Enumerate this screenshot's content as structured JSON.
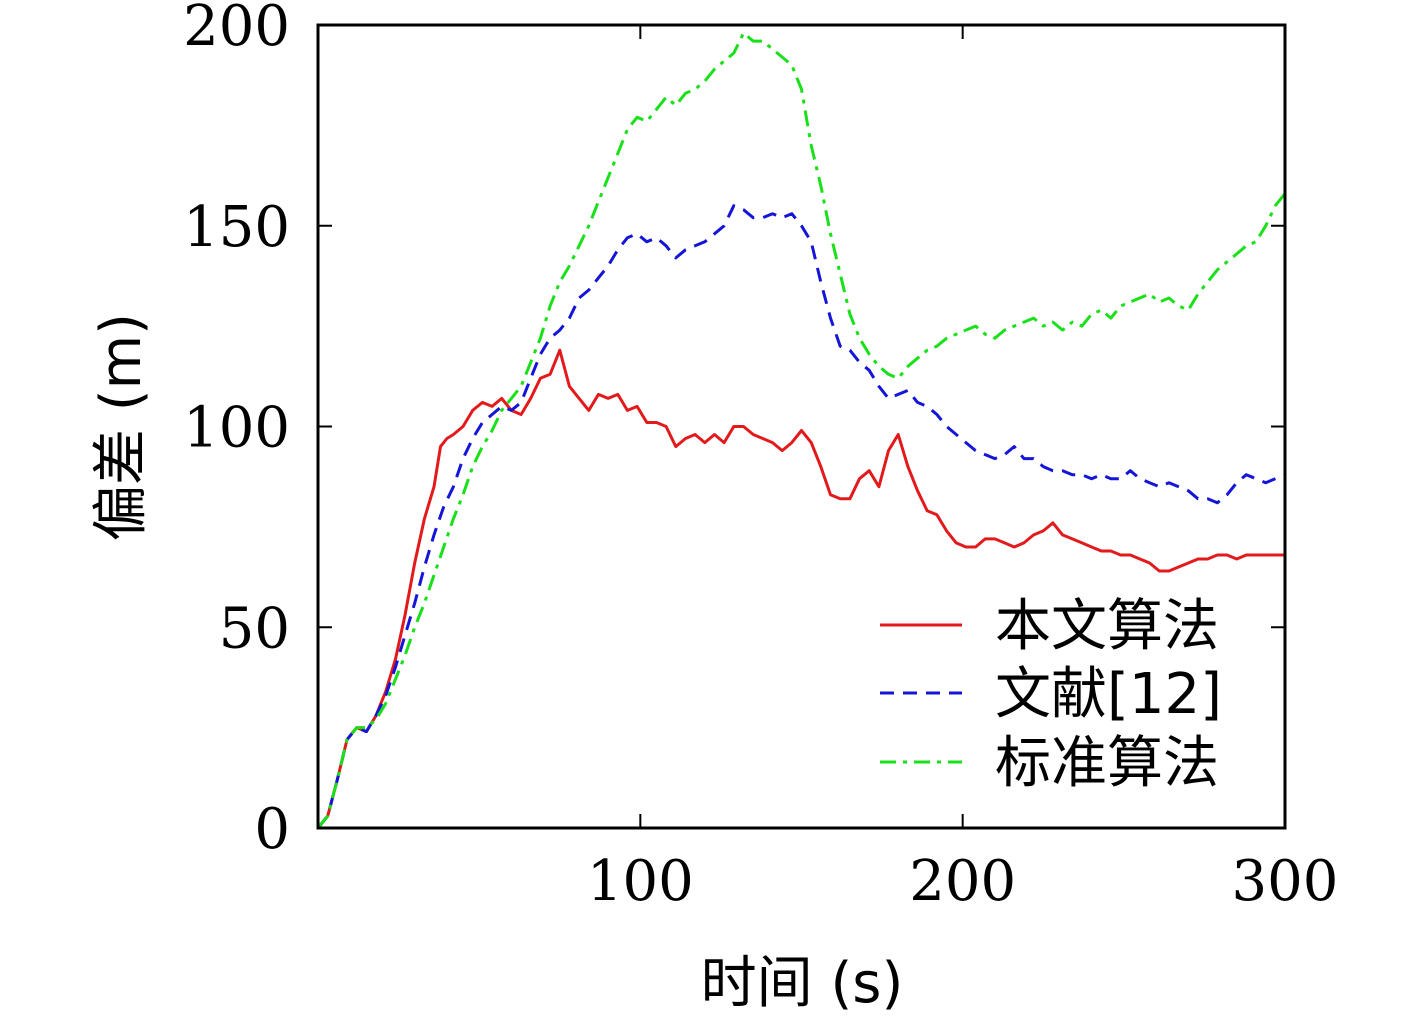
{
  "chart_data": {
    "type": "line",
    "xlabel": "时间 (s)",
    "ylabel": "偏差 (m)",
    "xlim": [
      0,
      300
    ],
    "ylim": [
      0,
      200
    ],
    "xticks": [
      100,
      200,
      300
    ],
    "yticks": [
      0,
      50,
      100,
      150,
      200
    ],
    "grid": false,
    "legend_position": "bottom-right",
    "series": [
      {
        "name": "本文算法",
        "color": "#e31a1c",
        "style": "solid",
        "x": [
          0,
          3,
          6,
          9,
          12,
          15,
          18,
          21,
          24,
          27,
          30,
          33,
          36,
          38,
          40,
          42,
          45,
          48,
          51,
          54,
          57,
          60,
          63,
          66,
          69,
          72,
          75,
          78,
          81,
          84,
          87,
          90,
          93,
          96,
          99,
          102,
          105,
          108,
          111,
          114,
          117,
          120,
          123,
          126,
          129,
          132,
          135,
          138,
          141,
          144,
          147,
          150,
          153,
          156,
          159,
          162,
          165,
          168,
          171,
          174,
          177,
          180,
          183,
          186,
          189,
          192,
          195,
          198,
          201,
          204,
          207,
          210,
          213,
          216,
          219,
          222,
          225,
          228,
          231,
          234,
          237,
          240,
          243,
          246,
          249,
          252,
          255,
          258,
          261,
          264,
          267,
          270,
          273,
          276,
          279,
          282,
          285,
          288,
          291,
          294,
          297,
          300
        ],
        "y": [
          0,
          3,
          12,
          22,
          25,
          24,
          28,
          34,
          42,
          53,
          66,
          77,
          85,
          95,
          97,
          98,
          100,
          104,
          106,
          105,
          107,
          104,
          103,
          107,
          112,
          113,
          119,
          110,
          107,
          104,
          108,
          107,
          108,
          104,
          105,
          101,
          101,
          100,
          95,
          97,
          98,
          96,
          98,
          96,
          100,
          100,
          98,
          97,
          96,
          94,
          96,
          99,
          96,
          90,
          83,
          82,
          82,
          87,
          89,
          85,
          94,
          98,
          90,
          84,
          79,
          78,
          74,
          71,
          70,
          70,
          72,
          72,
          71,
          70,
          71,
          73,
          74,
          76,
          73,
          72,
          71,
          70,
          69,
          69,
          68,
          68,
          67,
          66,
          64,
          64,
          65,
          66,
          67,
          67,
          68,
          68,
          67,
          68,
          68,
          68,
          68,
          68
        ]
      },
      {
        "name": "文献[12]",
        "color": "#1515d8",
        "style": "dashed",
        "x": [
          0,
          3,
          6,
          9,
          12,
          15,
          18,
          21,
          24,
          27,
          30,
          33,
          36,
          39,
          42,
          45,
          48,
          51,
          54,
          57,
          60,
          63,
          66,
          69,
          72,
          75,
          78,
          81,
          84,
          87,
          90,
          93,
          96,
          99,
          102,
          105,
          108,
          111,
          114,
          117,
          120,
          123,
          126,
          129,
          132,
          135,
          138,
          141,
          144,
          147,
          150,
          153,
          156,
          159,
          162,
          165,
          168,
          171,
          174,
          177,
          180,
          183,
          186,
          189,
          192,
          195,
          198,
          201,
          204,
          207,
          210,
          213,
          216,
          219,
          222,
          225,
          228,
          231,
          234,
          237,
          240,
          243,
          246,
          249,
          252,
          255,
          258,
          261,
          264,
          267,
          270,
          273,
          276,
          279,
          282,
          285,
          288,
          291,
          294,
          297,
          300
        ],
        "y": [
          0,
          3,
          12,
          22,
          25,
          24,
          28,
          33,
          40,
          48,
          56,
          65,
          73,
          80,
          85,
          92,
          97,
          101,
          103,
          105,
          104,
          106,
          112,
          118,
          122,
          124,
          127,
          132,
          134,
          137,
          140,
          144,
          147,
          148,
          146,
          147,
          145,
          142,
          144,
          145,
          146,
          148,
          150,
          155,
          154,
          152,
          152,
          153,
          152,
          153,
          150,
          146,
          136,
          127,
          120,
          119,
          116,
          114,
          110,
          107,
          108,
          109,
          106,
          105,
          103,
          100,
          98,
          96,
          94,
          93,
          92,
          93,
          95,
          92,
          92,
          90,
          89,
          89,
          88,
          88,
          87,
          88,
          87,
          87,
          89,
          87,
          86,
          85,
          86,
          85,
          84,
          82,
          82,
          81,
          83,
          86,
          88,
          87,
          86,
          87,
          88
        ]
      },
      {
        "name": "标准算法",
        "color": "#19e019",
        "style": "dashdot",
        "x": [
          0,
          3,
          6,
          9,
          12,
          15,
          18,
          21,
          24,
          27,
          30,
          33,
          36,
          39,
          42,
          45,
          48,
          51,
          54,
          57,
          60,
          63,
          66,
          69,
          72,
          75,
          78,
          81,
          84,
          87,
          90,
          93,
          96,
          99,
          102,
          105,
          108,
          111,
          114,
          117,
          120,
          123,
          126,
          129,
          132,
          135,
          138,
          141,
          144,
          147,
          150,
          153,
          156,
          159,
          162,
          165,
          168,
          171,
          174,
          177,
          180,
          183,
          186,
          189,
          192,
          195,
          198,
          201,
          204,
          207,
          210,
          213,
          216,
          219,
          222,
          225,
          228,
          231,
          234,
          237,
          240,
          243,
          246,
          249,
          252,
          255,
          258,
          261,
          264,
          267,
          270,
          273,
          276,
          279,
          282,
          285,
          288,
          291,
          294,
          297,
          300
        ],
        "y": [
          0,
          3,
          12,
          22,
          25,
          25,
          27,
          31,
          37,
          43,
          50,
          56,
          63,
          70,
          77,
          83,
          90,
          95,
          99,
          104,
          107,
          110,
          116,
          122,
          130,
          136,
          140,
          145,
          150,
          156,
          162,
          168,
          174,
          177,
          176,
          179,
          182,
          180,
          183,
          184,
          186,
          189,
          191,
          193,
          198,
          196,
          196,
          194,
          192,
          190,
          184,
          170,
          160,
          148,
          138,
          128,
          122,
          118,
          115,
          113,
          112,
          115,
          117,
          119,
          120,
          122,
          123,
          124,
          125,
          123,
          122,
          124,
          125,
          126,
          127,
          125,
          126,
          124,
          126,
          125,
          128,
          129,
          127,
          130,
          131,
          132,
          133,
          131,
          132,
          130,
          129,
          133,
          136,
          139,
          141,
          143,
          145,
          146,
          150,
          155,
          158
        ]
      }
    ]
  }
}
